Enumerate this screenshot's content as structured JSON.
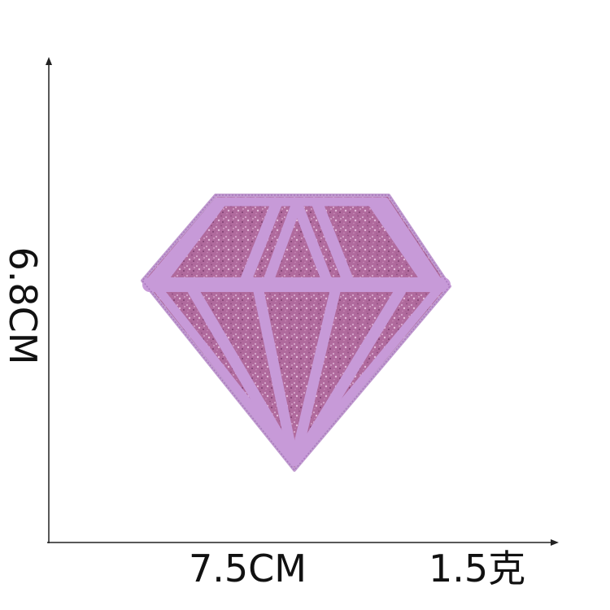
{
  "dimensions": {
    "width_label": "7.5CM",
    "height_label": "6.8CM",
    "weight_label": "1.5克"
  },
  "product": {
    "shape": "diamond",
    "colors": {
      "glitter_base": "#b06a9d",
      "glitter_dark": "#8c4a7d",
      "glitter_light": "#d7a8cc",
      "stitching": "#c79ad8",
      "stitch_edge": "#a979be"
    }
  },
  "axis": {
    "color": "#222222"
  }
}
